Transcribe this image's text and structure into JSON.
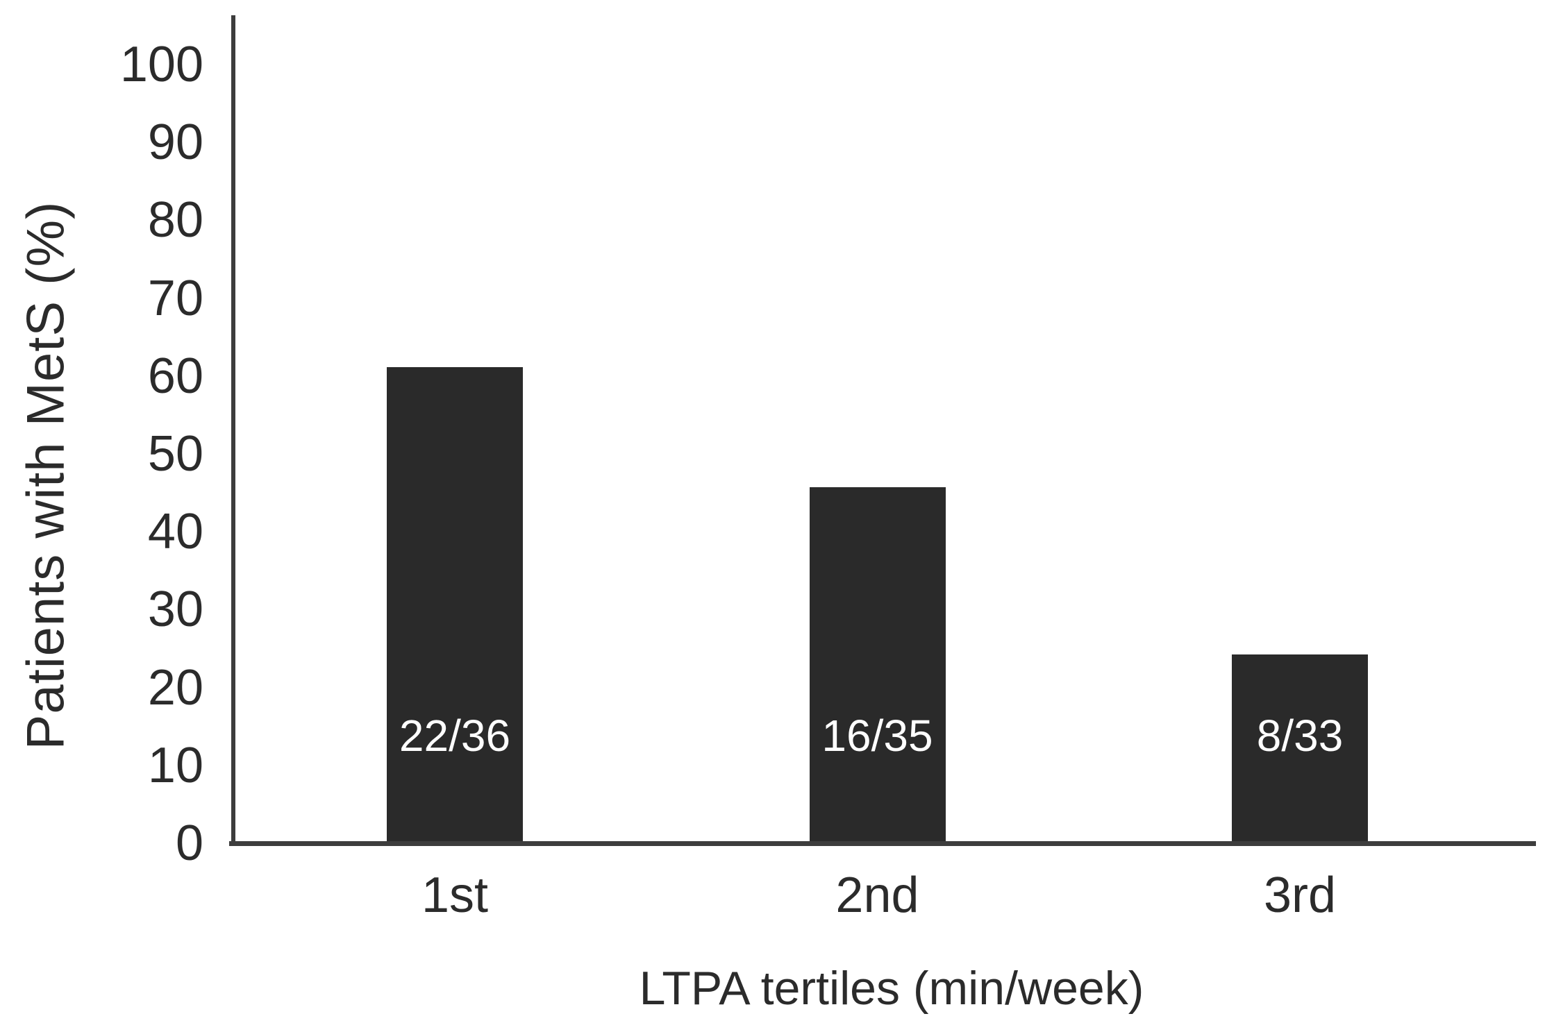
{
  "figure": {
    "background_color": "#ffffff",
    "bar_color": "#2a2a2a",
    "axis_color": "#3d3d3d",
    "text_color": "#2b2b2b",
    "bar_label_color": "#ffffff"
  },
  "chart_data": {
    "type": "bar",
    "title": "",
    "xlabel": "LTPA tertiles (min/week)",
    "ylabel": "Patients with MetS (%)",
    "categories": [
      "1st",
      "2nd",
      "3rd"
    ],
    "values": [
      61.1,
      45.7,
      24.2
    ],
    "bar_labels": [
      "22/36",
      "16/35",
      "8/33"
    ],
    "series": [
      {
        "name": "Patients with MetS (%)",
        "values": [
          61.1,
          45.7,
          24.2
        ],
        "counts": [
          "22/36",
          "16/35",
          "8/33"
        ]
      }
    ],
    "y_ticks": [
      0,
      10,
      20,
      30,
      40,
      50,
      60,
      70,
      80,
      90,
      100
    ],
    "ylim": [
      0,
      100
    ],
    "grid": false,
    "legend_position": "none"
  }
}
